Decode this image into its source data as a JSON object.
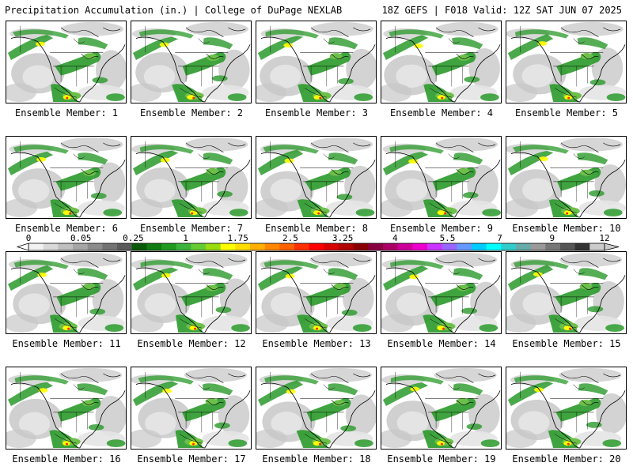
{
  "header": {
    "title": "Precipitation Accumulation (in.) | College of DuPage NEXLAB",
    "run_info": "18Z GEFS | F018 Valid: 12Z SAT JUN 07 2025"
  },
  "member_label_prefix": "Ensemble Member: ",
  "members": [
    {
      "number": "1",
      "label": "Ensemble Member: 1"
    },
    {
      "number": "2",
      "label": "Ensemble Member: 2"
    },
    {
      "number": "3",
      "label": "Ensemble Member: 3"
    },
    {
      "number": "4",
      "label": "Ensemble Member: 4"
    },
    {
      "number": "5",
      "label": "Ensemble Member: 5"
    },
    {
      "number": "6",
      "label": "Ensemble Member: 6"
    },
    {
      "number": "7",
      "label": "Ensemble Member: 7"
    },
    {
      "number": "8",
      "label": "Ensemble Member: 8"
    },
    {
      "number": "9",
      "label": "Ensemble Member: 9"
    },
    {
      "number": "10",
      "label": "Ensemble Member: 10"
    },
    {
      "number": "11",
      "label": "Ensemble Member: 11"
    },
    {
      "number": "12",
      "label": "Ensemble Member: 12"
    },
    {
      "number": "13",
      "label": "Ensemble Member: 13"
    },
    {
      "number": "14",
      "label": "Ensemble Member: 14"
    },
    {
      "number": "15",
      "label": "Ensemble Member: 15"
    },
    {
      "number": "16",
      "label": "Ensemble Member: 16"
    },
    {
      "number": "17",
      "label": "Ensemble Member: 17"
    },
    {
      "number": "18",
      "label": "Ensemble Member: 18"
    },
    {
      "number": "19",
      "label": "Ensemble Member: 19"
    },
    {
      "number": "20",
      "label": "Ensemble Member: 20"
    }
  ],
  "colorbar": {
    "tick_labels": [
      "0",
      "0.05",
      "0.25",
      "1",
      "1.75",
      "2.5",
      "3.25",
      "4",
      "5.5",
      "7",
      "9",
      "12"
    ],
    "colors": [
      "#f2f2f2",
      "#d9d9d9",
      "#bfbfbf",
      "#a6a6a6",
      "#8c8c8c",
      "#737373",
      "#5a5a5a",
      "#0a5a0a",
      "#117c11",
      "#1f9a1f",
      "#3cb43c",
      "#66cc33",
      "#99dd11",
      "#ffff00",
      "#ffdd00",
      "#ffb000",
      "#ff8800",
      "#ff6000",
      "#ff3000",
      "#ff0000",
      "#d80000",
      "#b00000",
      "#880000",
      "#880040",
      "#aa0066",
      "#cc0099",
      "#ee00cc",
      "#cc33ff",
      "#9966ff",
      "#6699ff",
      "#00ccff",
      "#00ffff",
      "#33cccc",
      "#66aaaa",
      "#999999",
      "#777777",
      "#555555",
      "#333333",
      "#cccccc"
    ]
  },
  "map_colors": {
    "land": "#ffffff",
    "water_gray": "#c8c8c8",
    "water_gray_light": "#e4e4e4",
    "precip_green": "#2a9a2a",
    "precip_green_light": "#6cc04a",
    "precip_yellow": "#ffff00",
    "precip_red": "#ff2a00",
    "outline": "#000000"
  }
}
